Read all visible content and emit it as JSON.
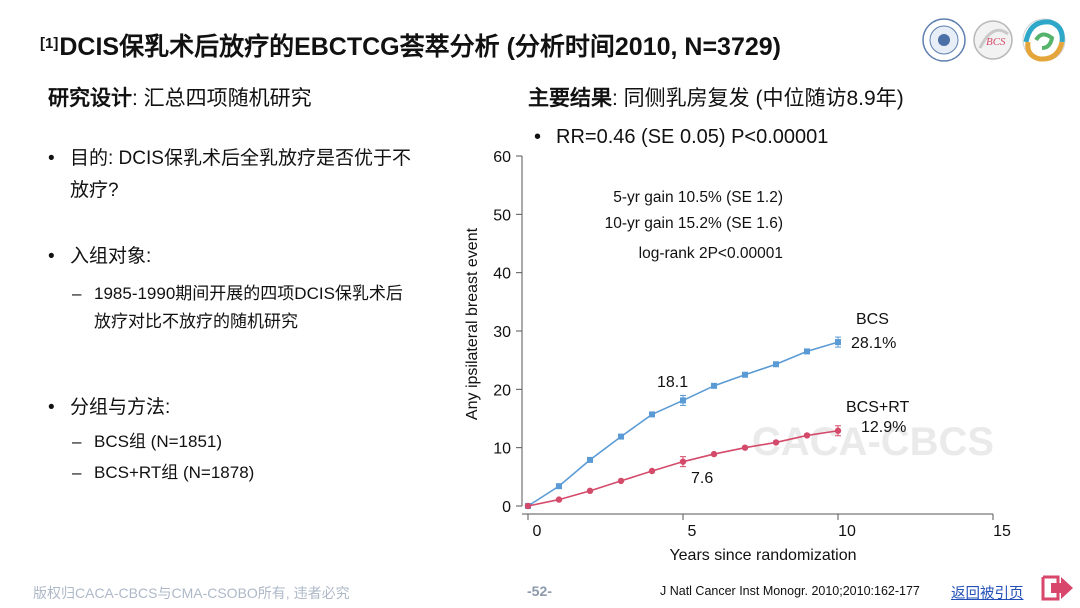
{
  "title": {
    "superscript": "[1]",
    "text": "DCIS保乳术后放疗的EBCTCG荟萃分析 (分析时间2010, N=3729)"
  },
  "left": {
    "heading_bold": "研究设计",
    "heading_rest": ": 汇总四项随机研究",
    "bullets": [
      {
        "text": "目的: DCIS保乳术后全乳放疗是否优于不放疗?"
      },
      {
        "text": "入组对象:",
        "subs": [
          "1985-1990期间开展的四项DCIS保乳术后放疗对比不放疗的随机研究"
        ]
      },
      {
        "text": "分组与方法:",
        "subs": [
          "BCS组 (N=1851)",
          "BCS+RT组 (N=1878)"
        ]
      }
    ]
  },
  "right": {
    "heading_bold": "主要结果",
    "heading_rest": ": 同侧乳房复发 (中位随访8.9年)",
    "bullet": "RR=0.46 (SE 0.05) P<0.00001"
  },
  "chart_data": {
    "type": "line",
    "xlabel": "Years since randomization",
    "ylabel": "Any ipsilateral breast event",
    "xlim": [
      0,
      15
    ],
    "ylim": [
      0,
      60
    ],
    "x_ticks": [
      0,
      5,
      10,
      15
    ],
    "y_ticks": [
      0,
      10,
      20,
      30,
      40,
      50,
      60
    ],
    "grid": false,
    "series": [
      {
        "name": "BCS",
        "color": "#5b9bd5",
        "marker": "square",
        "x": [
          0,
          1,
          2,
          3,
          4,
          5,
          6,
          7,
          8,
          9,
          10
        ],
        "y": [
          0,
          3.4,
          7.9,
          11.9,
          15.7,
          18.1,
          20.6,
          22.5,
          24.3,
          26.5,
          28.1
        ],
        "end_label": "BCS",
        "end_value_label": "28.1%",
        "point_label": {
          "x": 5,
          "text": "18.1"
        }
      },
      {
        "name": "BCS+RT",
        "color": "#d44a6a",
        "marker": "circle",
        "x": [
          0,
          1,
          2,
          3,
          4,
          5,
          6,
          7,
          8,
          9,
          10
        ],
        "y": [
          0,
          1.1,
          2.6,
          4.3,
          6.0,
          7.6,
          8.9,
          10.0,
          10.9,
          12.1,
          12.9
        ],
        "end_label": "BCS+RT",
        "end_value_label": "12.9%",
        "point_label": {
          "x": 5,
          "text": "7.6"
        }
      }
    ],
    "annotations": [
      "5-yr gain 10.5% (SE 1.2)",
      "10-yr gain 15.2% (SE 1.6)",
      "log-rank 2P<0.00001"
    ],
    "watermark": "CACA-CBCS"
  },
  "footer": {
    "copyright": "版权归CACA-CBCS与CMA-CSOBO所有, 违者必究",
    "page": "-52-",
    "reference": "J Natl Cancer Inst Monogr. 2010;2010:162-177",
    "back_link": "返回被引页"
  },
  "logos": [
    "university-seal-logo",
    "bcs-logo",
    "swirl-logo"
  ],
  "colors": {
    "arrow": "#d9466b",
    "link": "#2350b6",
    "footer_text": "#aeb9c8"
  }
}
